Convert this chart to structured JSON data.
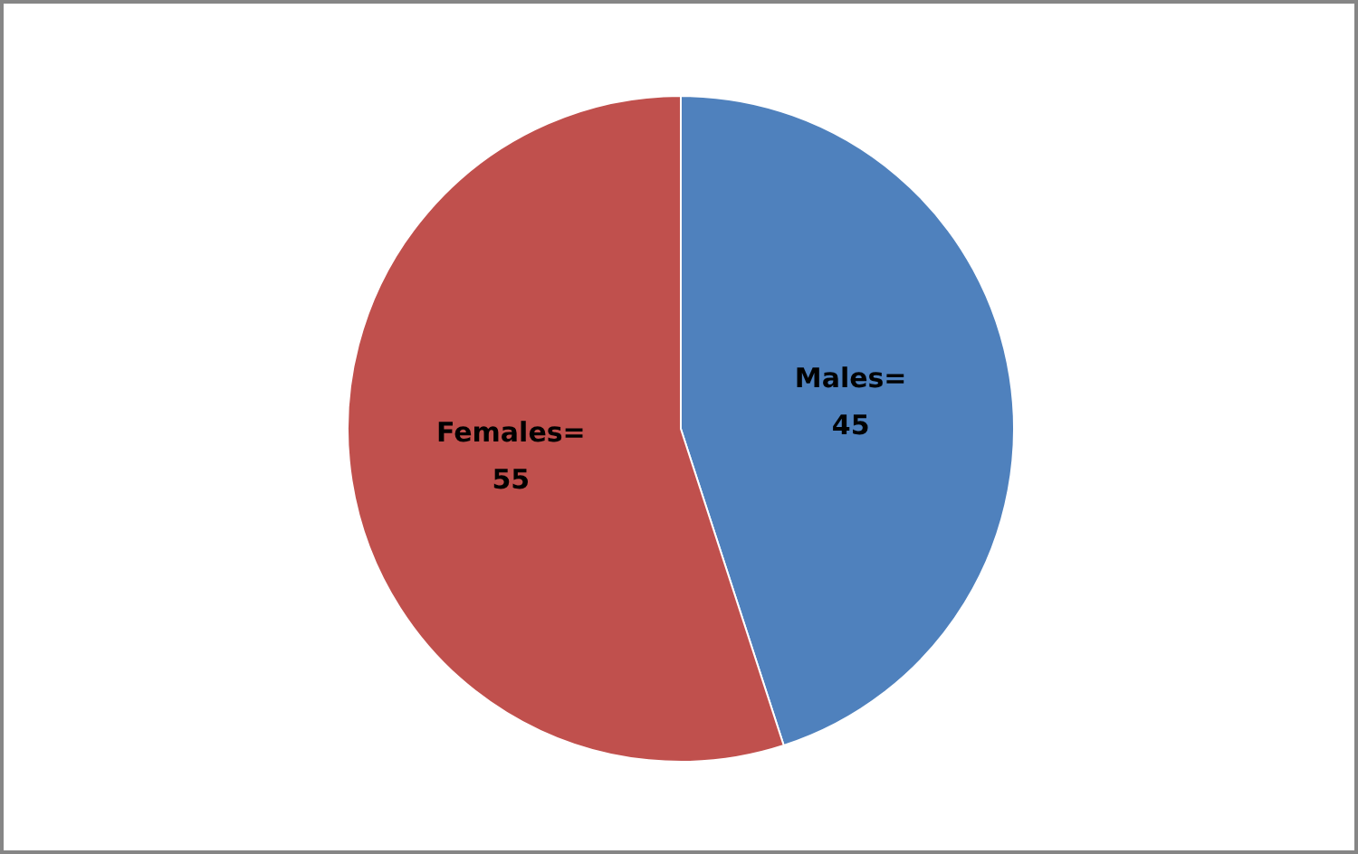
{
  "chart_data": {
    "type": "pie",
    "categories": [
      "Males=",
      "Females="
    ],
    "values": [
      45,
      55
    ],
    "colors": [
      "#4f81bd",
      "#c0504d"
    ],
    "data_labels": true,
    "legend": false
  }
}
